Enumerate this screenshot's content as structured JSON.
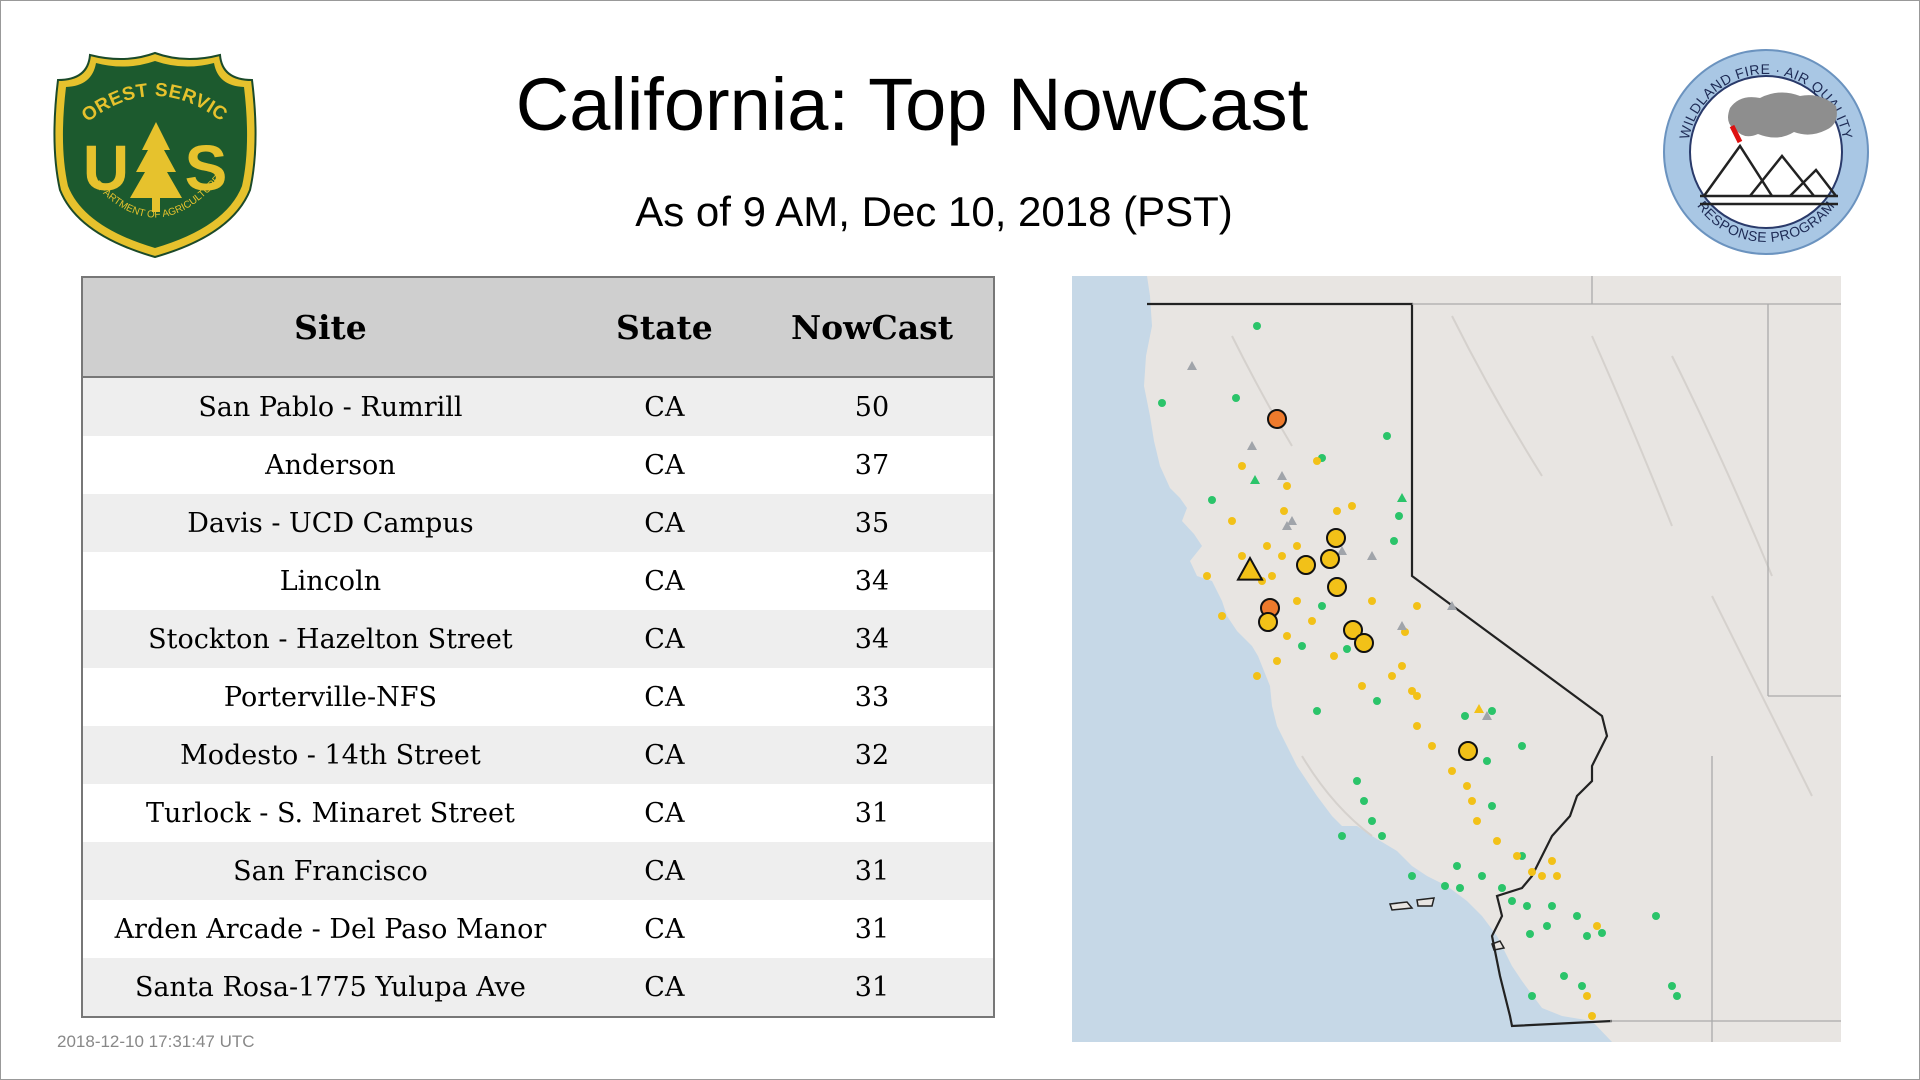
{
  "title": "California: Top NowCast",
  "subtitle": "As of  9 AM, Dec 10, 2018 (PST)",
  "timestamp": "2018-12-10 17:31:47 UTC",
  "logos": {
    "left": {
      "icon": "usfs-shield-logo",
      "top_text": "FOREST SERVICE",
      "bottom_text": "DEPARTMENT OF AGRICULTURE",
      "letters": "US"
    },
    "right": {
      "icon": "wildland-fire-air-quality-logo",
      "top_text": "WILDLAND FIRE · AIR QUALITY",
      "bottom_text": "RESPONSE PROGRAM"
    }
  },
  "table": {
    "headers": {
      "site": "Site",
      "state": "State",
      "nowcast": "NowCast"
    },
    "rows": [
      {
        "site": "San Pablo - Rumrill",
        "state": "CA",
        "nowcast": "50"
      },
      {
        "site": "Anderson",
        "state": "CA",
        "nowcast": "37"
      },
      {
        "site": "Davis - UCD Campus",
        "state": "CA",
        "nowcast": "35"
      },
      {
        "site": "Lincoln",
        "state": "CA",
        "nowcast": "34"
      },
      {
        "site": "Stockton - Hazelton Street",
        "state": "CA",
        "nowcast": "34"
      },
      {
        "site": "Porterville-NFS",
        "state": "CA",
        "nowcast": "33"
      },
      {
        "site": "Modesto - 14th Street",
        "state": "CA",
        "nowcast": "32"
      },
      {
        "site": "Turlock - S. Minaret Street",
        "state": "CA",
        "nowcast": "31"
      },
      {
        "site": "San Francisco",
        "state": "CA",
        "nowcast": "31"
      },
      {
        "site": "Arden Arcade - Del Paso Manor",
        "state": "CA",
        "nowcast": "31"
      },
      {
        "site": "Santa Rosa-1775 Yulupa Ave",
        "state": "CA",
        "nowcast": "31"
      }
    ]
  },
  "map": {
    "region": "California",
    "colors": {
      "land": "#e8e5e2",
      "water": "#c6d8e7",
      "good": "#2bc46a",
      "moderate": "#f2c118",
      "usg": "#ee7a2c",
      "unavailable": "#a0a4aa",
      "outline": "#222222"
    }
  }
}
